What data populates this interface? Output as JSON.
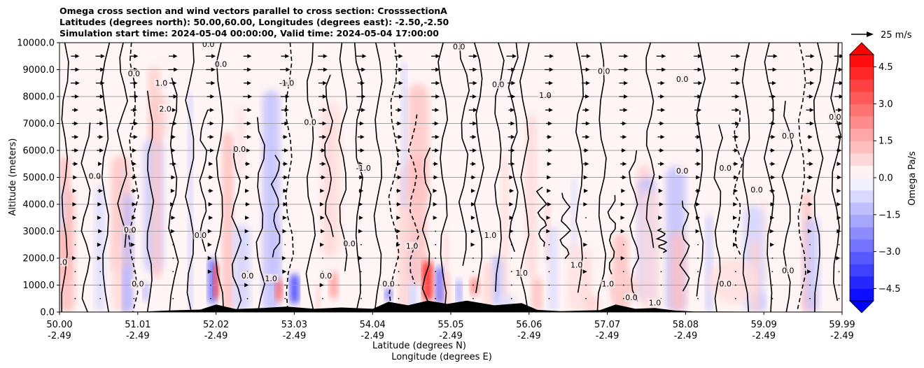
{
  "title_lines": [
    "Omega cross section and wind vectors parallel to cross section: CrosssectionA",
    "Latitudes (degrees north): 50.00,60.00, Longitudes (degrees east): -2.50,-2.50",
    "Simulation start time: 2024-05-04 00:00:00, Valid time: 2024-05-04 17:00:00"
  ],
  "quiver_key": "25 m/s",
  "colorbar": {
    "label": "Omega Pa/s",
    "ticks": [
      "4.5",
      "3.0",
      "1.5",
      "0.0",
      "−1.5",
      "−3.0",
      "−4.5"
    ]
  },
  "colors": {
    "positive_max": "#ff0000",
    "negative_max": "#0000ff",
    "terrain": "#000000"
  },
  "chart_data": {
    "type": "heatmap",
    "title": "Omega cross section and wind vectors parallel to cross section: CrosssectionA",
    "ylabel": "Altitude (meters)",
    "xlabel_lines": [
      "Latitude (degrees N)",
      "Longitude (degrees E)"
    ],
    "ylim": [
      0,
      10000
    ],
    "y_ticks": [
      "0.0",
      "1000.0",
      "2000.0",
      "3000.0",
      "4000.0",
      "5000.0",
      "6000.0",
      "7000.0",
      "8000.0",
      "9000.0",
      "10000.0"
    ],
    "x_ticks": [
      {
        "lat": "50.00",
        "lon": "-2.49"
      },
      {
        "lat": "51.01",
        "lon": "-2.49"
      },
      {
        "lat": "52.02",
        "lon": "-2.49"
      },
      {
        "lat": "53.03",
        "lon": "-2.49"
      },
      {
        "lat": "54.04",
        "lon": "-2.49"
      },
      {
        "lat": "55.05",
        "lon": "-2.49"
      },
      {
        "lat": "56.06",
        "lon": "-2.49"
      },
      {
        "lat": "57.07",
        "lon": "-2.49"
      },
      {
        "lat": "58.08",
        "lon": "-2.49"
      },
      {
        "lat": "59.09",
        "lon": "-2.49"
      },
      {
        "lat": "59.99",
        "lon": "-2.49"
      }
    ],
    "color_range": [
      -5,
      5
    ],
    "grid": true,
    "contour_labels": [
      {
        "lat": 50.02,
        "alt": 1800,
        "text": "0.0"
      },
      {
        "lat": 50.45,
        "alt": 5000,
        "text": "0.0"
      },
      {
        "lat": 50.95,
        "alt": 8800,
        "text": "0.0"
      },
      {
        "lat": 51.3,
        "alt": 8450,
        "text": "1.0"
      },
      {
        "lat": 51.35,
        "alt": 7500,
        "text": "2.0"
      },
      {
        "lat": 51.9,
        "alt": 9900,
        "text": "0.0"
      },
      {
        "lat": 52.06,
        "alt": 9150,
        "text": "0.0"
      },
      {
        "lat": 52.9,
        "alt": 8450,
        "text": "-1.0"
      },
      {
        "lat": 53.88,
        "alt": 5300,
        "text": "-1.0"
      },
      {
        "lat": 54.5,
        "alt": 2400,
        "text": "1.0"
      },
      {
        "lat": 56.2,
        "alt": 8000,
        "text": "1.0"
      },
      {
        "lat": 55.1,
        "alt": 9800,
        "text": "0.0"
      },
      {
        "lat": 58.5,
        "alt": 5300,
        "text": "0.0"
      },
      {
        "lat": 58.5,
        "alt": 1000,
        "text": "0.0"
      },
      {
        "lat": 57.3,
        "alt": 500,
        "text": "0.0"
      },
      {
        "lat": 50.9,
        "alt": 3000,
        "text": "0.0"
      },
      {
        "lat": 52.3,
        "alt": 6000,
        "text": "0.0"
      },
      {
        "lat": 57.95,
        "alt": 8600,
        "text": "0.0"
      },
      {
        "lat": 59.3,
        "alt": 6500,
        "text": "0.0"
      },
      {
        "lat": 59.9,
        "alt": 7200,
        "text": "0.0"
      },
      {
        "lat": 53.2,
        "alt": 7000,
        "text": "0.0"
      },
      {
        "lat": 55.6,
        "alt": 8400,
        "text": "0.0"
      },
      {
        "lat": 56.95,
        "alt": 8900,
        "text": "0.0"
      },
      {
        "lat": 57.95,
        "alt": 5200,
        "text": "0.0"
      },
      {
        "lat": 58.9,
        "alt": 4500,
        "text": "0.0"
      },
      {
        "lat": 59.3,
        "alt": 1500,
        "text": "0.0"
      },
      {
        "lat": 55.9,
        "alt": 1400,
        "text": "1.0"
      },
      {
        "lat": 56.6,
        "alt": 1700,
        "text": "1.0"
      },
      {
        "lat": 57.0,
        "alt": 1000,
        "text": "1.0"
      },
      {
        "lat": 57.6,
        "alt": 300,
        "text": "1.0"
      },
      {
        "lat": 53.4,
        "alt": 1300,
        "text": "0.0"
      },
      {
        "lat": 54.2,
        "alt": 1000,
        "text": "0.0"
      },
      {
        "lat": 52.7,
        "alt": 1200,
        "text": "1.0"
      },
      {
        "lat": 51.0,
        "alt": 1000,
        "text": "0.0"
      },
      {
        "lat": 52.4,
        "alt": 1300,
        "text": "0.0"
      },
      {
        "lat": 51.8,
        "alt": 2800,
        "text": "0.0"
      },
      {
        "lat": 53.7,
        "alt": 2500,
        "text": "0.0"
      },
      {
        "lat": 55.5,
        "alt": 2800,
        "text": "1.0"
      }
    ]
  }
}
